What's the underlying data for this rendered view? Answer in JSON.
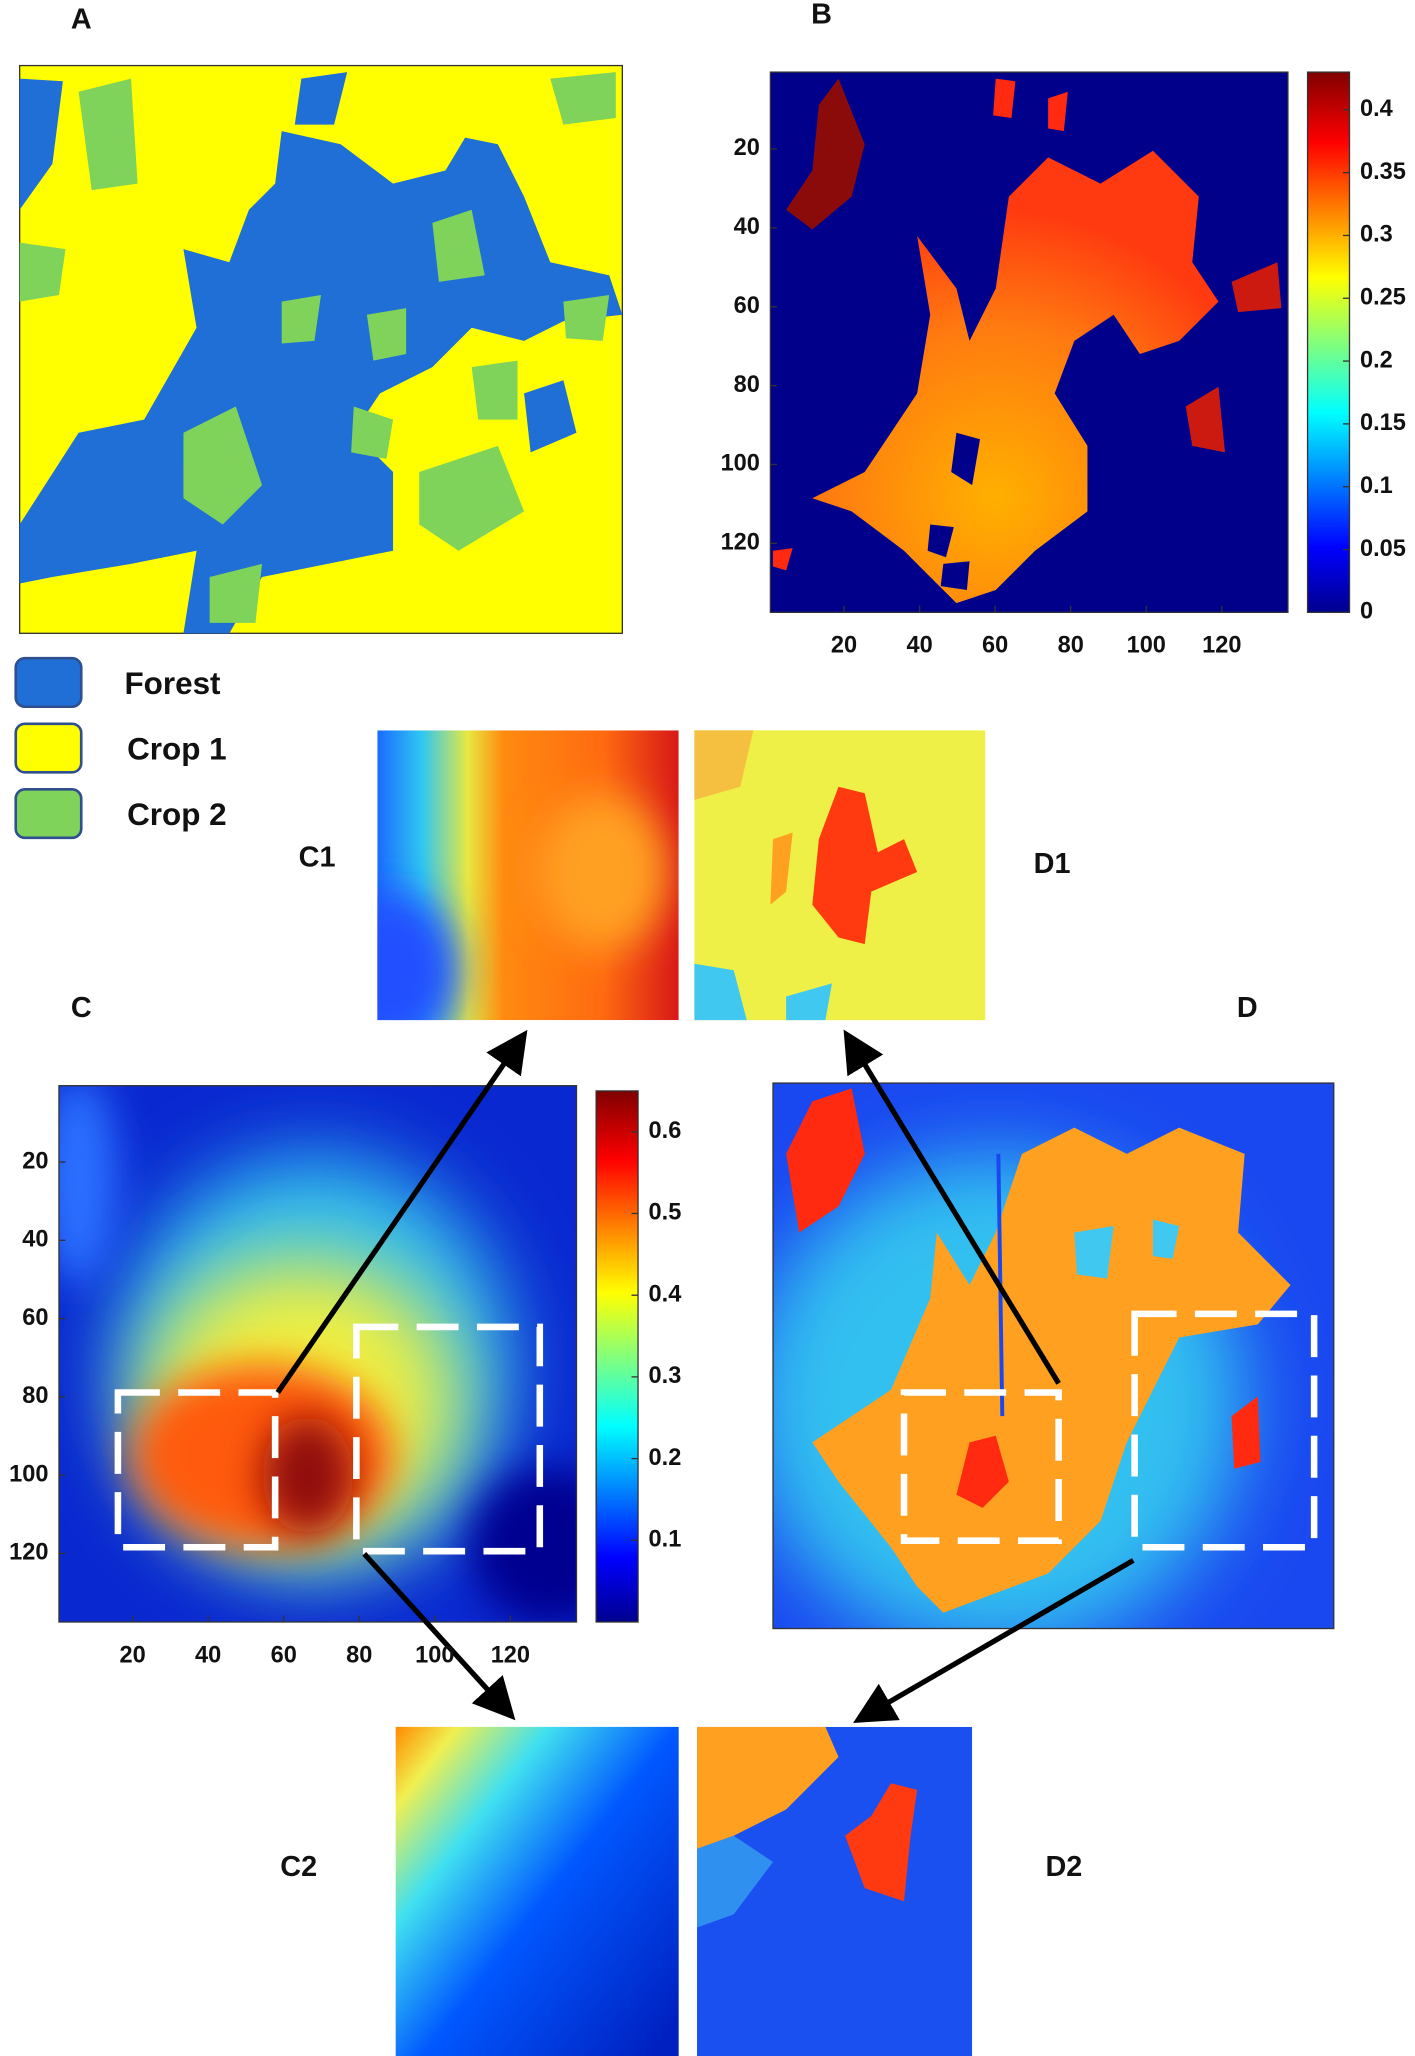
{
  "panels": {
    "a": {
      "label": "A",
      "legend": [
        {
          "label": "Forest",
          "color": "#1f6fd6"
        },
        {
          "label": "Crop 1",
          "color": "#ffff00"
        },
        {
          "label": "Crop 2",
          "color": "#7fd35a"
        }
      ]
    },
    "b": {
      "label": "B",
      "xlim": [
        0.5,
        137.5
      ],
      "ylim": [
        0.5,
        137.5
      ],
      "xticks": [
        20,
        40,
        60,
        80,
        100,
        120
      ],
      "yticks": [
        20,
        40,
        60,
        80,
        100,
        120
      ],
      "colorbar": {
        "lim": [
          0,
          0.43
        ],
        "ticks": [
          0,
          0.05,
          0.1,
          0.15,
          0.2,
          0.25,
          0.3,
          0.35,
          0.4
        ]
      }
    },
    "c": {
      "label": "C",
      "xlim": [
        0.5,
        137.5
      ],
      "ylim": [
        0.5,
        137.5
      ],
      "xticks": [
        20,
        40,
        60,
        80,
        100,
        120
      ],
      "yticks": [
        20,
        40,
        60,
        80,
        100,
        120
      ],
      "colorbar": {
        "lim": [
          0,
          0.65
        ],
        "ticks": [
          0.1,
          0.2,
          0.3,
          0.4,
          0.5,
          0.6
        ]
      }
    },
    "c1": {
      "label": "C1"
    },
    "c2": {
      "label": "C2"
    },
    "d": {
      "label": "D"
    },
    "d1": {
      "label": "D1"
    },
    "d2": {
      "label": "D2"
    }
  }
}
